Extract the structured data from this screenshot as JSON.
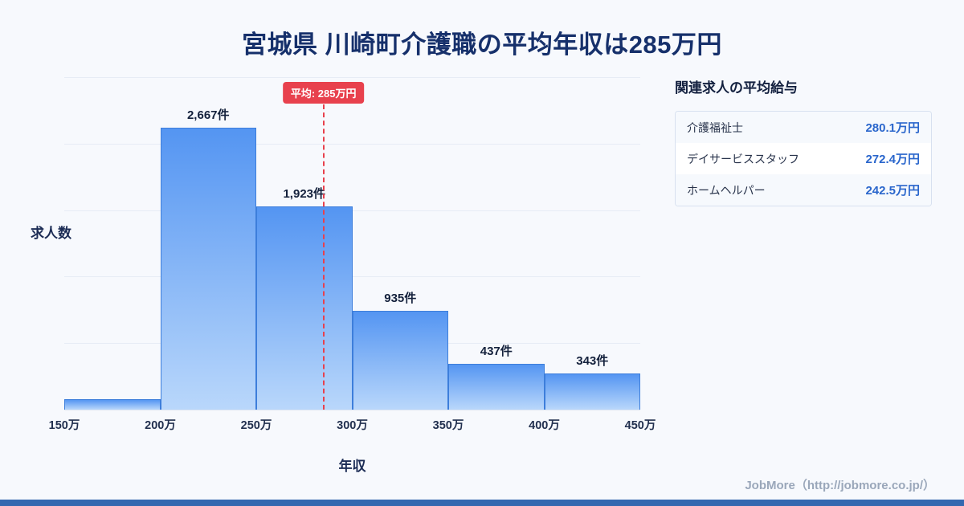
{
  "page": {
    "title": "宮城県 川崎町介護職の平均年収は285万円",
    "background": "#f7f9fd",
    "footer_brand": "JobMore（http://jobmore.co.jp/）",
    "footer_bar_color": "#3468b0"
  },
  "chart_data": {
    "type": "bar",
    "title": "宮城県 川崎町介護職の平均年収は285万円",
    "xlabel": "年収",
    "ylabel": "求人数",
    "categories": [
      "150万-200万",
      "200万-250万",
      "250万-300万",
      "300万-350万",
      "350万-400万",
      "400万-450万"
    ],
    "x_ticks": [
      "150万",
      "200万",
      "250万",
      "300万",
      "350万",
      "400万",
      "450万"
    ],
    "values": [
      100,
      2667,
      1923,
      935,
      437,
      343
    ],
    "bar_labels": [
      "",
      "2,667件",
      "1,923件",
      "935件",
      "437件",
      "343件"
    ],
    "ylim": [
      0,
      3150
    ],
    "grid": true,
    "average": {
      "label": "平均: 285万円",
      "value": 285,
      "x_min": 150,
      "x_max": 450
    },
    "bar_color_top": "#5495f2",
    "bar_color_bottom": "#b9d7fb",
    "bar_border_color": "#3d7edb",
    "average_line_color": "#e8414d",
    "note": "first bar (150万-200万) has no printed label; value 100 estimated from bar height"
  },
  "side_panel": {
    "heading": "関連求人の平均給与",
    "rows": [
      {
        "label": "介護福祉士",
        "value": "280.1万円"
      },
      {
        "label": "デイサービススタッフ",
        "value": "272.4万円"
      },
      {
        "label": "ホームヘルパー",
        "value": "242.5万円"
      }
    ]
  }
}
